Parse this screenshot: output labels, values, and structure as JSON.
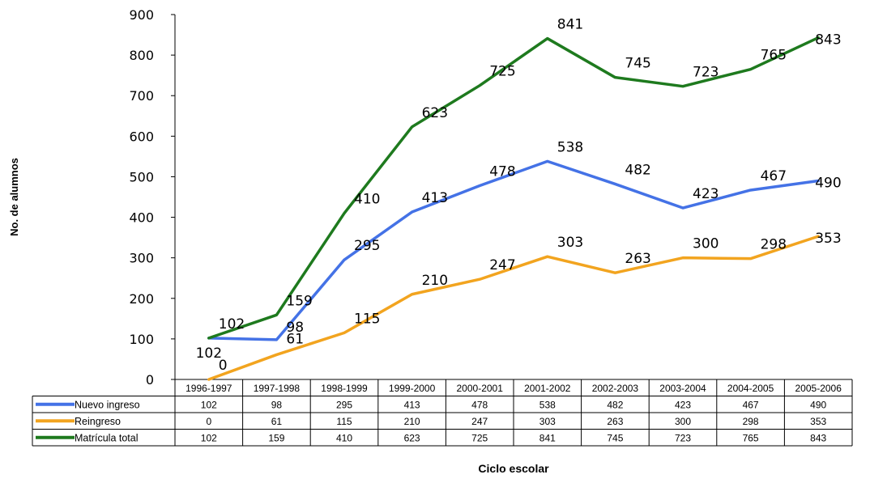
{
  "chart_data": {
    "type": "line",
    "title": "",
    "xlabel": "Ciclo escolar",
    "ylabel": "No. de alumnos",
    "ylim": [
      0,
      900
    ],
    "yticks": [
      0,
      100,
      200,
      300,
      400,
      500,
      600,
      700,
      800,
      900
    ],
    "grid": false,
    "legend": "data-table",
    "categories": [
      "1996-1997",
      "1997-1998",
      "1998-1999",
      "1999-2000",
      "2000-2001",
      "2001-2002",
      "2002-2003",
      "2003-2004",
      "2004-2005",
      "2005-2006"
    ],
    "series": [
      {
        "name": "Nuevo ingreso",
        "color": "#4472E6",
        "values": [
          102,
          98,
          295,
          413,
          478,
          538,
          482,
          423,
          467,
          490
        ]
      },
      {
        "name": "Reingreso",
        "color": "#F2A41F",
        "values": [
          0,
          61,
          115,
          210,
          247,
          303,
          263,
          300,
          298,
          353
        ]
      },
      {
        "name": "Matrícula total",
        "color": "#1E7A1E",
        "values": [
          102,
          159,
          410,
          623,
          725,
          841,
          745,
          723,
          765,
          843
        ]
      }
    ]
  }
}
